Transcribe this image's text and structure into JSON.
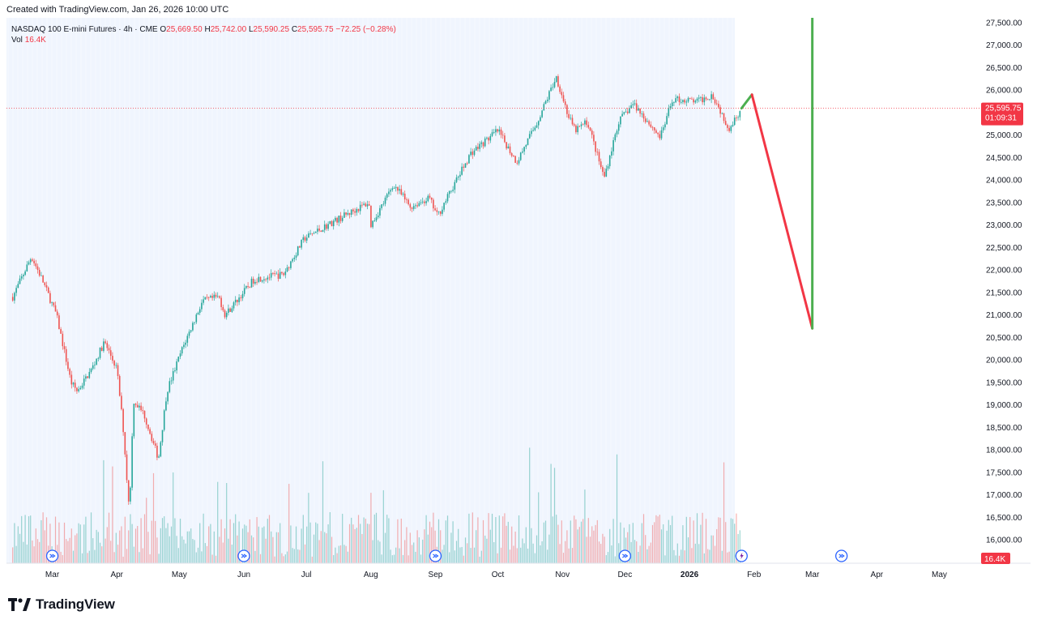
{
  "credit": "Created with TradingView.com, Jan 26, 2026 10:00 UTC",
  "legend": {
    "symbol": "NASDAQ 100 E-mini Futures · 4h · CME",
    "open_label": "O",
    "open": "25,669.50",
    "high_label": "H",
    "high": "25,742.00",
    "low_label": "L",
    "low": "25,590.25",
    "close_label": "C",
    "close": "25,595.75",
    "change": "−72.25 (−0.28%)",
    "vol_label": "Vol",
    "vol": "16.4K"
  },
  "price_badge": {
    "price": "25,595.75",
    "countdown": "01:09:31"
  },
  "volume_badge": "16.4K",
  "brand": "TradingView",
  "colors": {
    "up": "#26a69a",
    "down": "#ef5350",
    "projection_up": "#4caf50",
    "projection_down": "#f23645",
    "shade": "#e3ecfd"
  },
  "chart_data": {
    "type": "candlestick",
    "interval": "4h",
    "y_axis_ticks": [
      16000,
      16500,
      17000,
      17500,
      18000,
      18500,
      19000,
      19500,
      20000,
      20500,
      21000,
      21500,
      22000,
      22500,
      23000,
      23500,
      24000,
      24500,
      25000,
      25500,
      26000,
      26500,
      27000,
      27500
    ],
    "y_axis_labels": [
      "16,000.00",
      "16,500.00",
      "17,000.00",
      "17,500.00",
      "18,000.00",
      "18,500.00",
      "19,000.00",
      "19,500.00",
      "20,000.00",
      "20,500.00",
      "21,000.00",
      "21,500.00",
      "22,000.00",
      "22,500.00",
      "23,000.00",
      "23,500.00",
      "24,000.00",
      "24,500.00",
      "25,000.00",
      "25,500.00",
      "26,000.00",
      "26,500.00",
      "27,000.00",
      "27,500.00"
    ],
    "x_axis_labels": [
      {
        "label": "Mar",
        "date": "2025-03-01"
      },
      {
        "label": "Apr",
        "date": "2025-04-01"
      },
      {
        "label": "May",
        "date": "2025-05-01"
      },
      {
        "label": "Jun",
        "date": "2025-06-01"
      },
      {
        "label": "Jul",
        "date": "2025-07-01"
      },
      {
        "label": "Aug",
        "date": "2025-08-01"
      },
      {
        "label": "Sep",
        "date": "2025-09-01"
      },
      {
        "label": "Oct",
        "date": "2025-10-01"
      },
      {
        "label": "Nov",
        "date": "2025-11-01"
      },
      {
        "label": "Dec",
        "date": "2025-12-01"
      },
      {
        "label": "2026",
        "date": "2026-01-01",
        "bold": true
      },
      {
        "label": "Feb",
        "date": "2026-02-01"
      },
      {
        "label": "Mar",
        "date": "2026-03-01"
      },
      {
        "label": "Apr",
        "date": "2026-04-01"
      },
      {
        "label": "May",
        "date": "2026-05-01"
      }
    ],
    "price_path": [
      [
        "2025-02-10",
        21400
      ],
      [
        "2025-02-19",
        22300
      ],
      [
        "2025-02-24",
        21800
      ],
      [
        "2025-03-03",
        21000
      ],
      [
        "2025-03-10",
        19500
      ],
      [
        "2025-03-13",
        19300
      ],
      [
        "2025-03-20",
        19800
      ],
      [
        "2025-03-26",
        20400
      ],
      [
        "2025-04-01",
        19800
      ],
      [
        "2025-04-04",
        18500
      ],
      [
        "2025-04-07",
        16600
      ],
      [
        "2025-04-09",
        19100
      ],
      [
        "2025-04-14",
        18800
      ],
      [
        "2025-04-21",
        17800
      ],
      [
        "2025-04-25",
        19300
      ],
      [
        "2025-05-02",
        20200
      ],
      [
        "2025-05-12",
        21300
      ],
      [
        "2025-05-20",
        21400
      ],
      [
        "2025-05-23",
        21000
      ],
      [
        "2025-06-06",
        21800
      ],
      [
        "2025-06-20",
        21900
      ],
      [
        "2025-06-30",
        22700
      ],
      [
        "2025-07-15",
        23100
      ],
      [
        "2025-07-31",
        23500
      ],
      [
        "2025-08-01",
        23000
      ],
      [
        "2025-08-12",
        23900
      ],
      [
        "2025-08-20",
        23400
      ],
      [
        "2025-08-29",
        23600
      ],
      [
        "2025-09-02",
        23200
      ],
      [
        "2025-09-18",
        24600
      ],
      [
        "2025-10-01",
        25100
      ],
      [
        "2025-10-10",
        24400
      ],
      [
        "2025-10-20",
        25300
      ],
      [
        "2025-10-29",
        26300
      ],
      [
        "2025-11-04",
        25400
      ],
      [
        "2025-11-07",
        25100
      ],
      [
        "2025-11-13",
        25300
      ],
      [
        "2025-11-20",
        24200
      ],
      [
        "2025-11-21",
        24050
      ],
      [
        "2025-11-28",
        25300
      ],
      [
        "2025-12-05",
        25700
      ],
      [
        "2025-12-12",
        25300
      ],
      [
        "2025-12-18",
        24950
      ],
      [
        "2025-12-24",
        25800
      ],
      [
        "2026-01-05",
        25750
      ],
      [
        "2026-01-12",
        25900
      ],
      [
        "2026-01-20",
        25150
      ],
      [
        "2026-01-26",
        25596
      ]
    ],
    "projection": [
      {
        "from": [
          "2026-01-26",
          25596
        ],
        "to": [
          "2026-01-31",
          25900
        ],
        "color": "green"
      },
      {
        "from": [
          "2026-01-31",
          25900
        ],
        "to": [
          "2026-03-01",
          20700
        ],
        "color": "red"
      },
      {
        "from": [
          "2026-03-01",
          20700
        ],
        "to": [
          "2026-03-01",
          27600
        ],
        "color": "green"
      }
    ],
    "last_price": 25595.75,
    "event_markers": [
      "2025-03-01",
      "2025-06-01",
      "2025-09-01",
      "2025-12-01",
      "2026-01-26",
      "2026-03-15"
    ],
    "volume_last": "16.4K",
    "grid": "vertical"
  }
}
